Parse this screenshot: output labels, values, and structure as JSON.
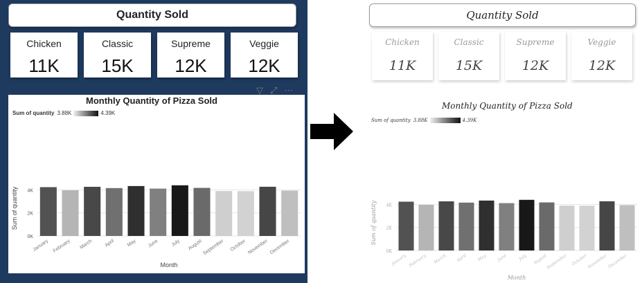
{
  "left": {
    "header_title": "Quantity Sold",
    "cards": [
      {
        "label": "Chicken",
        "value": "11K"
      },
      {
        "label": "Classic",
        "value": "15K"
      },
      {
        "label": "Supreme",
        "value": "12K"
      },
      {
        "label": "Veggie",
        "value": "12K"
      }
    ],
    "toolbar": {
      "filter_icon": "filter-icon",
      "expand_icon": "focus-mode-icon",
      "more_icon": "more-options-icon"
    }
  },
  "right": {
    "header_title": "Quantity Sold",
    "cards": [
      {
        "label": "Chicken",
        "value": "11K"
      },
      {
        "label": "Classic",
        "value": "15K"
      },
      {
        "label": "Supreme",
        "value": "12K"
      },
      {
        "label": "Veggie",
        "value": "12K"
      }
    ]
  },
  "arrow": {
    "icon": "right-arrow-icon",
    "color": "#000000"
  },
  "colors": {
    "page_background_left": "#1f3a5f"
  },
  "chart_data": [
    {
      "type": "bar",
      "title": "Monthly Quantity of Pizza Sold",
      "legend": {
        "label": "Sum of quantity",
        "min": "3.88K",
        "max": "4.39K",
        "position": "top-left"
      },
      "categories": [
        "January",
        "February",
        "March",
        "April",
        "May",
        "June",
        "July",
        "August",
        "September",
        "October",
        "November",
        "December"
      ],
      "values": [
        4232,
        3961,
        4261,
        4151,
        4328,
        4107,
        4392,
        4168,
        3890,
        3883,
        4266,
        3935
      ],
      "ylabel": "Sum of quantity",
      "xlabel": "Month",
      "yticks": [
        "0K",
        "2K",
        "4K"
      ],
      "ylim": [
        0,
        4800
      ]
    },
    {
      "type": "bar",
      "title": "Monthly Quantity of Pizza Sold",
      "legend": {
        "label": "Sum of quantity",
        "min": "3.88K",
        "max": "4.39K",
        "position": "top-left"
      },
      "categories": [
        "January",
        "February",
        "March",
        "April",
        "May",
        "June",
        "July",
        "August",
        "September",
        "October",
        "November",
        "December"
      ],
      "values": [
        4232,
        3961,
        4261,
        4151,
        4328,
        4107,
        4392,
        4168,
        3890,
        3883,
        4266,
        3935
      ],
      "ylabel": "Sum of quantity",
      "xlabel": "Month",
      "yticks": [
        "0K",
        "2K",
        "4K"
      ],
      "ylim": [
        0,
        4800
      ]
    }
  ]
}
